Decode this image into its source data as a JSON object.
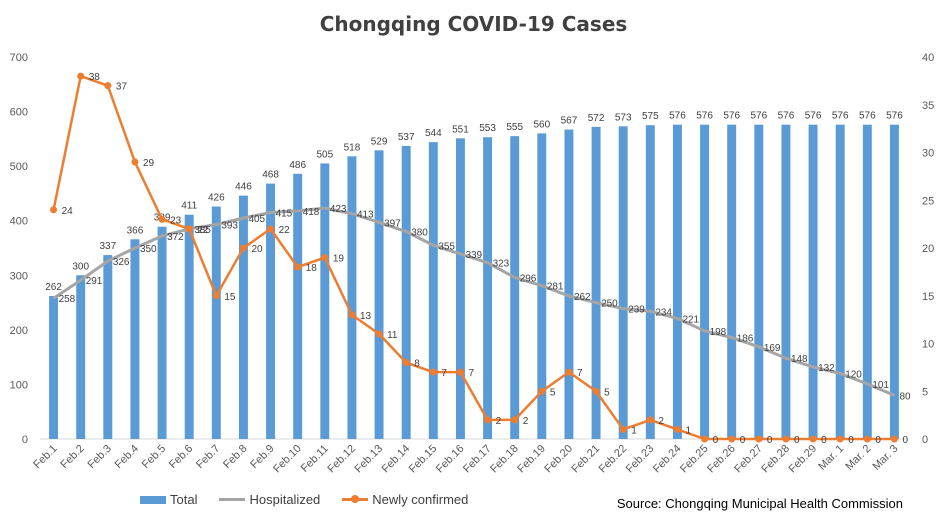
{
  "chart_data": {
    "type": "bar",
    "title": "Chongqing COVID-19 Cases",
    "source": "Source: Chongqing Municipal Health Commission",
    "categories": [
      "Feb.1",
      "Feb.2",
      "Feb.3",
      "Feb.4",
      "Feb.5",
      "Feb.6",
      "Feb.7",
      "Feb.8",
      "Feb.9",
      "Feb.10",
      "Feb.11",
      "Feb.12",
      "Feb.13",
      "Feb.14",
      "Feb.15",
      "Feb.16",
      "Feb.17",
      "Feb.18",
      "Feb.19",
      "Feb.20",
      "Feb.21",
      "Feb.22",
      "Feb.23",
      "Feb.24",
      "Feb.25",
      "Feb.26",
      "Feb.27",
      "Feb.28",
      "Feb.29",
      "Mar. 1",
      "Mar. 2",
      "Mar. 3"
    ],
    "left_axis": {
      "ylim": [
        0,
        700
      ],
      "ticks": [
        0,
        100,
        200,
        300,
        400,
        500,
        600,
        700
      ]
    },
    "right_axis": {
      "ylim": [
        0,
        40
      ],
      "ticks": [
        0,
        5,
        10,
        15,
        20,
        25,
        30,
        35,
        40
      ]
    },
    "grid": false,
    "legend_position": "bottom",
    "series": [
      {
        "name": "Total",
        "kind": "bar",
        "axis": "left",
        "color": "#5B9BD5",
        "values": [
          262,
          300,
          337,
          366,
          389,
          411,
          426,
          446,
          468,
          486,
          505,
          518,
          529,
          537,
          544,
          551,
          553,
          555,
          560,
          567,
          572,
          573,
          575,
          576,
          576,
          576,
          576,
          576,
          576,
          576,
          576,
          576
        ]
      },
      {
        "name": "Hospitalized",
        "kind": "line",
        "axis": "left",
        "color": "#A5A5A5",
        "values": [
          258,
          291,
          326,
          350,
          372,
          385,
          393,
          405,
          415,
          418,
          423,
          413,
          397,
          380,
          355,
          339,
          323,
          296,
          281,
          262,
          250,
          239,
          234,
          221,
          198,
          186,
          169,
          148,
          132,
          120,
          101,
          80
        ]
      },
      {
        "name": "Newly confirmed",
        "kind": "line",
        "axis": "right",
        "color": "#ED7D31",
        "values": [
          24,
          38,
          37,
          29,
          23,
          22,
          15,
          20,
          22,
          18,
          19,
          13,
          11,
          8,
          7,
          7,
          2,
          2,
          5,
          7,
          5,
          1,
          2,
          1,
          0,
          0,
          0,
          0,
          0,
          0,
          0,
          0
        ]
      }
    ]
  }
}
